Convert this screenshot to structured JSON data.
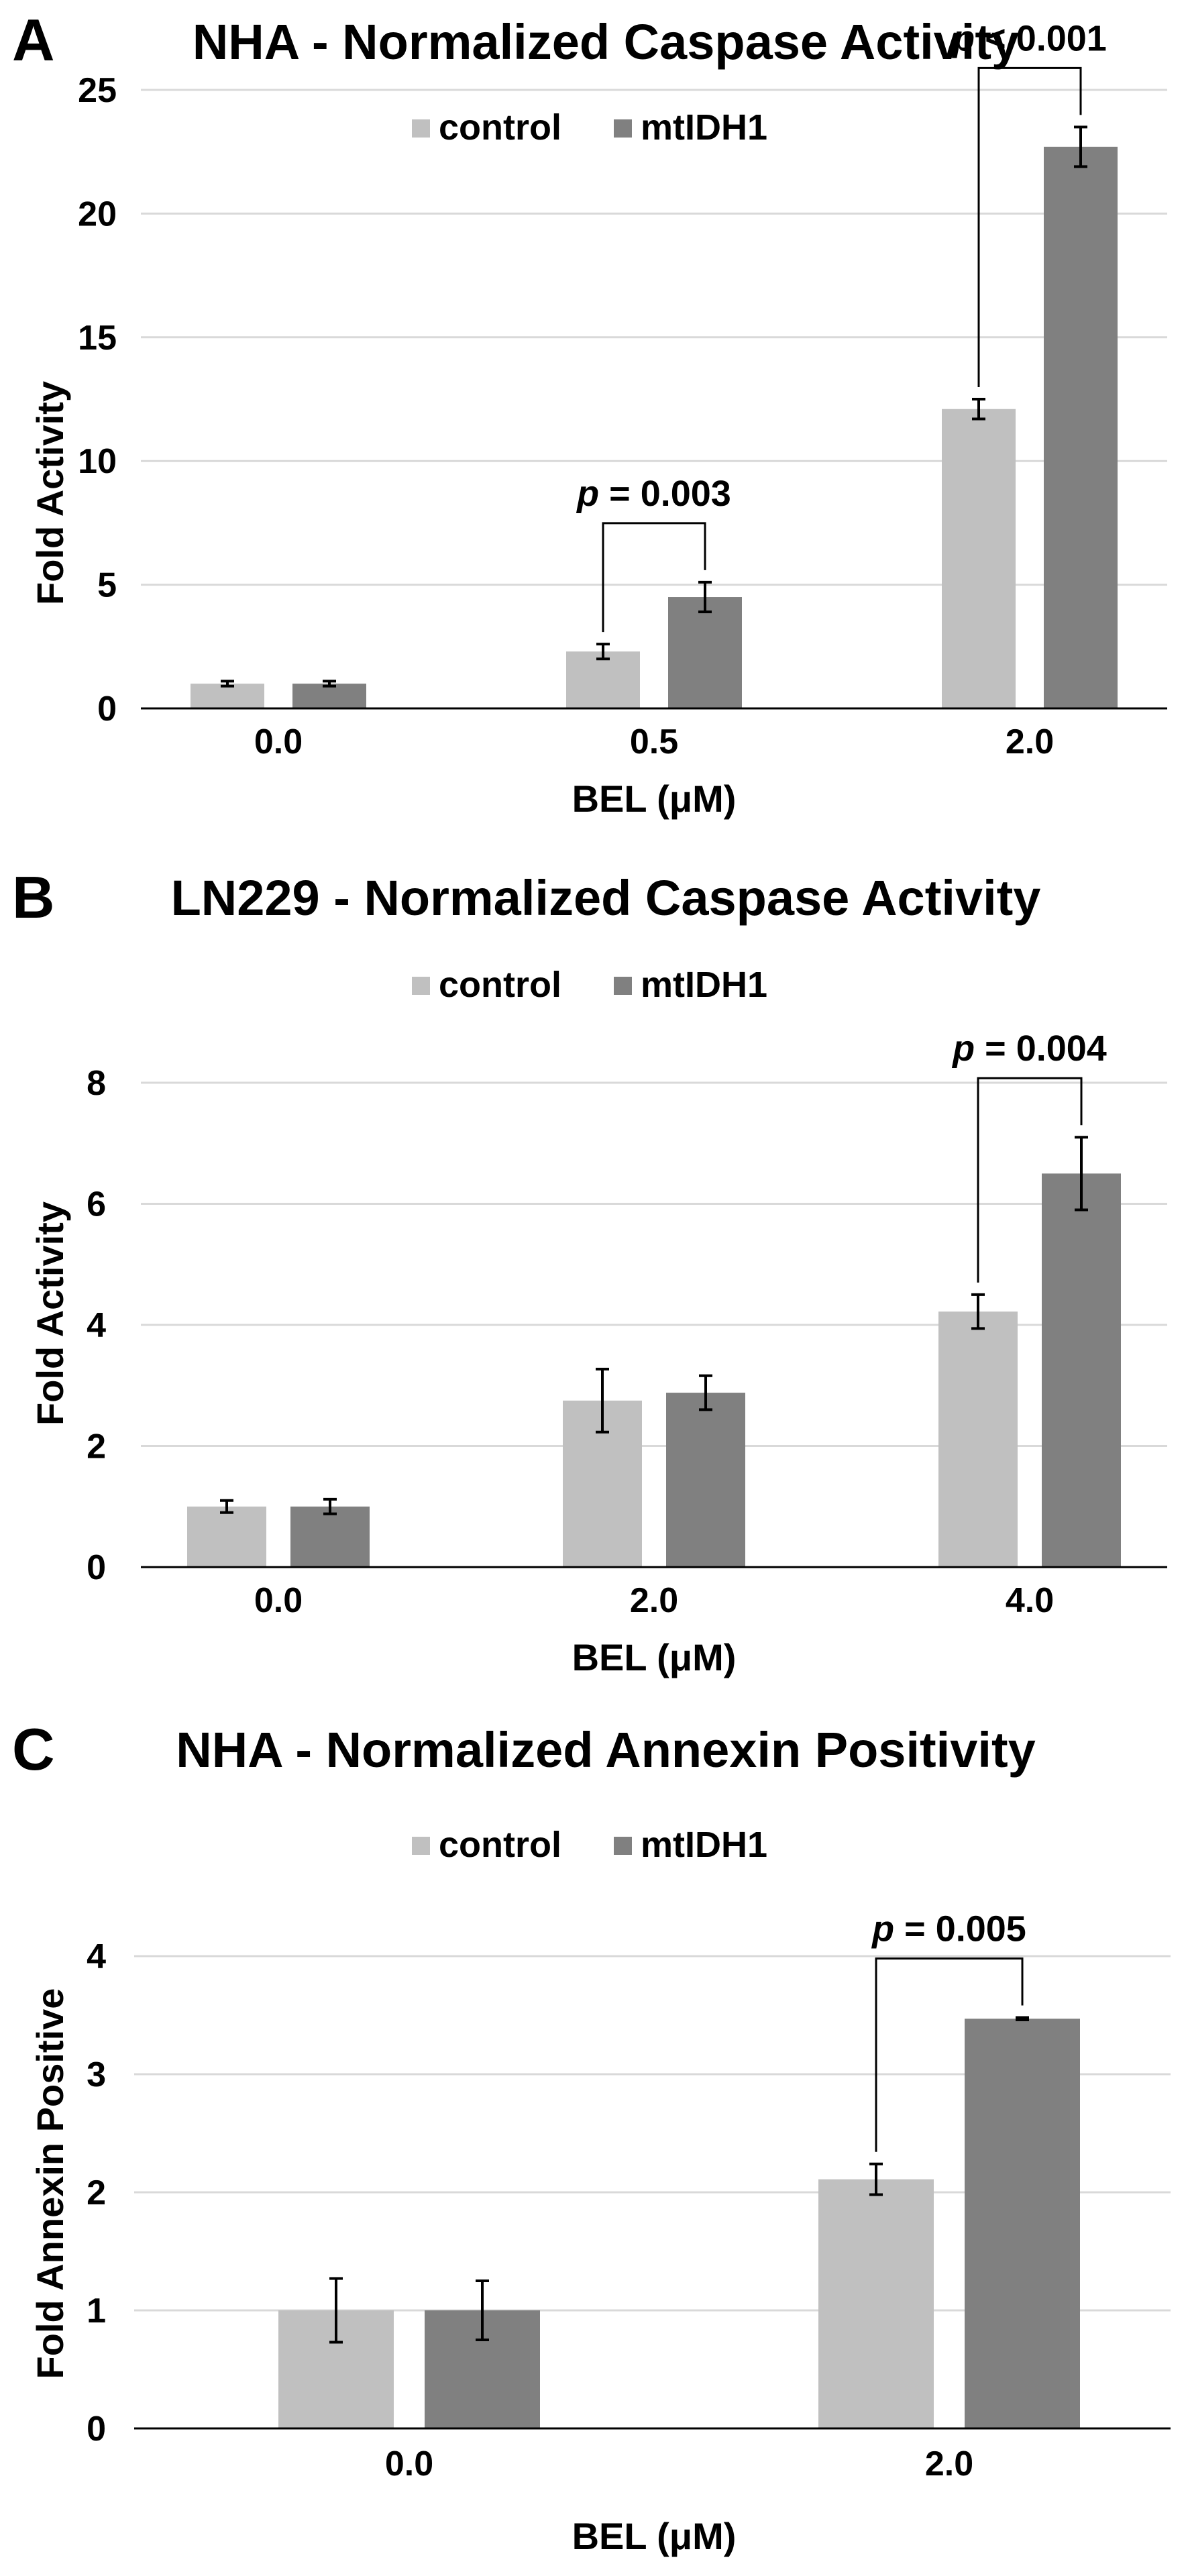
{
  "colors": {
    "control": "#c0c0c0",
    "mtIDH1": "#808080",
    "grid": "#d9d9d9",
    "axis": "#000000"
  },
  "chart_data": [
    {
      "panel_letter": "A",
      "type": "bar",
      "title": "NHA - Normalized Caspase Activity",
      "xlabel": "BEL (μM)",
      "ylabel": "Fold Activity",
      "ylim": [
        0,
        25
      ],
      "ticks": [
        "0",
        "5",
        "10",
        "15",
        "20",
        "25"
      ],
      "categories": [
        "0.0",
        "0.5",
        "2.0"
      ],
      "legend": [
        "control",
        "mtIDH1"
      ],
      "legend_position": "top-center",
      "gridlines": true,
      "series": [
        {
          "name": "control",
          "values": [
            1.0,
            2.3,
            12.1
          ],
          "errors": [
            0.1,
            0.3,
            0.4
          ]
        },
        {
          "name": "mtIDH1",
          "values": [
            1.0,
            4.5,
            22.7
          ],
          "errors": [
            0.1,
            0.6,
            0.8
          ]
        }
      ],
      "annotations": [
        {
          "category_index": 1,
          "p_label": "p",
          "text": " = 0.003"
        },
        {
          "category_index": 2,
          "p_label": "p",
          "text": " < 0.001"
        }
      ]
    },
    {
      "panel_letter": "B",
      "type": "bar",
      "title": "LN229 - Normalized Caspase Activity",
      "xlabel": "BEL (μM)",
      "ylabel": "Fold Activity",
      "ylim": [
        0,
        8
      ],
      "ticks": [
        "0",
        "2",
        "4",
        "6",
        "8"
      ],
      "categories": [
        "0.0",
        "2.0",
        "4.0"
      ],
      "legend": [
        "control",
        "mtIDH1"
      ],
      "legend_position": "top-center",
      "gridlines": true,
      "series": [
        {
          "name": "control",
          "values": [
            1.0,
            2.75,
            4.22
          ],
          "errors": [
            0.1,
            0.52,
            0.28
          ]
        },
        {
          "name": "mtIDH1",
          "values": [
            1.0,
            2.88,
            6.5
          ],
          "errors": [
            0.12,
            0.28,
            0.6
          ]
        }
      ],
      "annotations": [
        {
          "category_index": 2,
          "p_label": "p",
          "text": " = 0.004"
        }
      ]
    },
    {
      "panel_letter": "C",
      "type": "bar",
      "title": "NHA - Normalized Annexin Positivity",
      "xlabel": "BEL (μM)",
      "ylabel": "Fold Annexin Positive",
      "ylim": [
        0,
        4
      ],
      "ticks": [
        "0",
        "1",
        "2",
        "3",
        "4"
      ],
      "categories": [
        "0.0",
        "2.0"
      ],
      "legend": [
        "control",
        "mtIDH1"
      ],
      "legend_position": "top-center",
      "gridlines": true,
      "series": [
        {
          "name": "control",
          "values": [
            1.0,
            2.11
          ],
          "errors": [
            0.27,
            0.13
          ]
        },
        {
          "name": "mtIDH1",
          "values": [
            1.0,
            3.47
          ],
          "errors": [
            0.25,
            0.01
          ]
        }
      ],
      "annotations": [
        {
          "category_index": 1,
          "p_label": "p",
          "text": " = 0.005"
        }
      ]
    }
  ]
}
